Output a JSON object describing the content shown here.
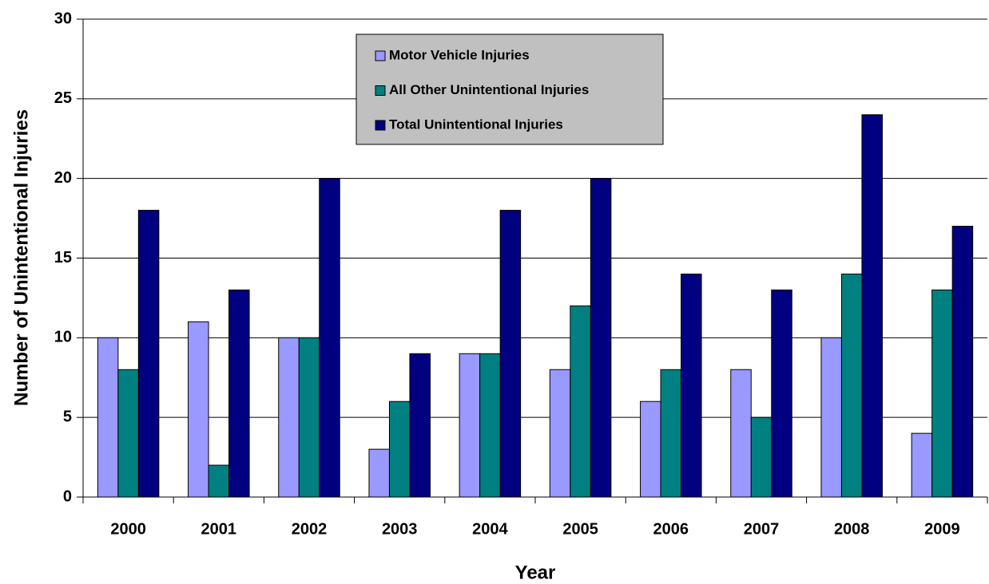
{
  "chart_data": {
    "type": "bar",
    "xlabel": "Year",
    "ylabel": "Number of Unintentional Injuries",
    "categories": [
      "2000",
      "2001",
      "2002",
      "2003",
      "2004",
      "2005",
      "2006",
      "2007",
      "2008",
      "2009"
    ],
    "series": [
      {
        "name": "Motor Vehicle Injuries",
        "color": "#9999ff",
        "values": [
          10,
          11,
          10,
          3,
          9,
          8,
          6,
          8,
          10,
          4
        ]
      },
      {
        "name": "All Other Unintentional Injuries",
        "color": "#008080",
        "values": [
          8,
          2,
          10,
          6,
          9,
          12,
          8,
          5,
          14,
          13
        ]
      },
      {
        "name": "Total Unintentional Injuries",
        "color": "#000080",
        "values": [
          18,
          13,
          20,
          9,
          18,
          20,
          14,
          13,
          24,
          17
        ]
      }
    ],
    "ylim": [
      0,
      30
    ],
    "yticks": [
      0,
      5,
      10,
      15,
      20,
      25,
      30
    ],
    "grid": true,
    "legend": "upper center"
  }
}
